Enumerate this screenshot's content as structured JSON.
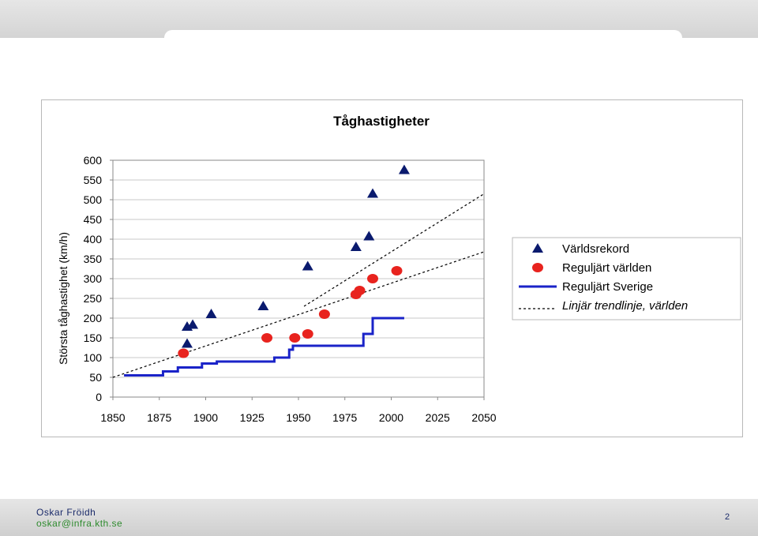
{
  "footer": {
    "author": "Oskar Fröidh",
    "email": "oskar@infra.kth.se",
    "page": "2"
  },
  "chart_data": {
    "type": "scatter",
    "title": "Tåghastigheter",
    "xlabel": "",
    "ylabel": "Största tåghastighet (km/h)",
    "xlim": [
      1850,
      2050
    ],
    "ylim": [
      0,
      600
    ],
    "x_ticks": [
      "1850",
      "1875",
      "1900",
      "1925",
      "1950",
      "1975",
      "2000",
      "2025",
      "2050"
    ],
    "y_ticks": [
      "0",
      "50",
      "100",
      "150",
      "200",
      "250",
      "300",
      "350",
      "400",
      "450",
      "500",
      "550",
      "600"
    ],
    "grid": "horizontal",
    "legend_position": "right",
    "series": [
      {
        "name": "Världsrekord",
        "kind": "triangle",
        "color": "#0a1a6e",
        "points": [
          [
            1890,
            135
          ],
          [
            1890,
            178
          ],
          [
            1893,
            183
          ],
          [
            1903,
            210
          ],
          [
            1931,
            230
          ],
          [
            1955,
            331
          ],
          [
            1981,
            380
          ],
          [
            1988,
            407
          ],
          [
            1990,
            515
          ],
          [
            2007,
            575
          ]
        ]
      },
      {
        "name": "Reguljärt världen",
        "kind": "circle",
        "color": "#e8231e",
        "points": [
          [
            1888,
            111
          ],
          [
            1933,
            150
          ],
          [
            1948,
            150
          ],
          [
            1955,
            160
          ],
          [
            1964,
            210
          ],
          [
            1981,
            260
          ],
          [
            1983,
            270
          ],
          [
            1990,
            300
          ],
          [
            2003,
            320
          ]
        ]
      },
      {
        "name": "Reguljärt Sverige",
        "kind": "step",
        "color": "#1a23c8",
        "points": [
          [
            1856,
            55
          ],
          [
            1877,
            55
          ],
          [
            1877,
            65
          ],
          [
            1885,
            65
          ],
          [
            1885,
            75
          ],
          [
            1898,
            75
          ],
          [
            1898,
            85
          ],
          [
            1906,
            85
          ],
          [
            1906,
            90
          ],
          [
            1937,
            90
          ],
          [
            1937,
            100
          ],
          [
            1945,
            100
          ],
          [
            1945,
            120
          ],
          [
            1947,
            120
          ],
          [
            1947,
            130
          ],
          [
            1985,
            130
          ],
          [
            1985,
            160
          ],
          [
            1990,
            160
          ],
          [
            1990,
            200
          ],
          [
            2007,
            200
          ]
        ]
      },
      {
        "name": "Linjär trendlinje, världen",
        "kind": "trend",
        "color": "#000000",
        "lines": [
          [
            [
              1850,
              50
            ],
            [
              2050,
              368
            ]
          ],
          [
            [
              1953,
              230
            ],
            [
              2050,
              515
            ]
          ]
        ]
      }
    ]
  }
}
